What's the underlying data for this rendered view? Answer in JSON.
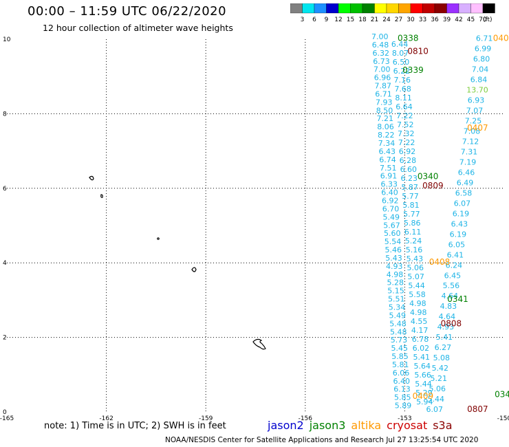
{
  "title": "00:00 – 11:59 UTC 06/22/2020",
  "subtitle": "12 hour collection of altimeter wave heights",
  "colorbar": {
    "labels": [
      "3",
      "6",
      "9",
      "12",
      "15",
      "18",
      "21",
      "24",
      "27",
      "30",
      "33",
      "36",
      "39",
      "42",
      "45",
      "70"
    ],
    "unit": "(ft)",
    "colors": [
      "#808080",
      "#00e5ee",
      "#1e90ff",
      "#0000cd",
      "#00ff00",
      "#00c000",
      "#008000",
      "#ffff00",
      "#ffd700",
      "#ffa500",
      "#ff0000",
      "#c00000",
      "#8b0000",
      "#9b30ff",
      "#d8b0ff",
      "#ffc0ff",
      "#000000"
    ]
  },
  "axes": {
    "x_ticks": [
      "-165",
      "-162",
      "-159",
      "-156",
      "-153",
      "-150"
    ],
    "y_ticks": [
      "0",
      "2",
      "4",
      "6",
      "8",
      "10"
    ],
    "xlim": [
      -165,
      -150
    ],
    "ylim": [
      0,
      10
    ]
  },
  "satellites": [
    {
      "name": "jason2",
      "color": "#0000cd"
    },
    {
      "name": "jason3",
      "color": "#008000"
    },
    {
      "name": "altika",
      "color": "#ff9900"
    },
    {
      "name": "cryosat",
      "color": "#cc0000"
    },
    {
      "name": "s3a",
      "color": "#8b0000"
    }
  ],
  "pass_times": [
    {
      "text": "0338",
      "lon": -152.9,
      "lat": 9.95,
      "color": "#008000"
    },
    {
      "text": "0810",
      "lon": -152.6,
      "lat": 9.6,
      "color": "#800000"
    },
    {
      "text": "0339",
      "lon": -152.75,
      "lat": 9.1,
      "color": "#008000"
    },
    {
      "text": "0340",
      "lon": -152.3,
      "lat": 6.25,
      "color": "#008000"
    },
    {
      "text": "0809",
      "lon": -152.15,
      "lat": 6.0,
      "color": "#800000"
    },
    {
      "text": "0341",
      "lon": -151.4,
      "lat": 2.95,
      "color": "#008000"
    },
    {
      "text": "0808",
      "lon": -151.6,
      "lat": 2.3,
      "color": "#800000"
    },
    {
      "text": "0407",
      "lon": -150.8,
      "lat": 7.55,
      "color": "#ff9900"
    },
    {
      "text": "0408",
      "lon": -151.95,
      "lat": 3.95,
      "color": "#ff9900"
    },
    {
      "text": "0409",
      "lon": -152.45,
      "lat": 0.35,
      "color": "#ff9900"
    },
    {
      "text": "0807",
      "lon": -150.8,
      "lat": 0.0,
      "color": "#800000"
    },
    {
      "text": "040",
      "lon": -150.1,
      "lat": 9.95,
      "color": "#ff9900"
    },
    {
      "text": "034",
      "lon": -150.05,
      "lat": 0.4,
      "color": "#008000"
    }
  ],
  "wave_heights": {
    "track_a": {
      "start": [
        -153.75,
        10.0
      ],
      "end": [
        -153.05,
        0.1
      ],
      "values": [
        "7.00",
        "6.48",
        "6.32",
        "6.73",
        "7.00",
        "6.96",
        "7.87",
        "6.71",
        "7.93",
        "8.50",
        "7.21",
        "8.06",
        "8.22",
        "7.34",
        "6.43",
        "6.74",
        "7.51",
        "6.91",
        "6.33",
        "6.40",
        "6.92",
        "6.70",
        "5.49",
        "5.67",
        "5.60",
        "5.54",
        "5.46",
        "5.43",
        "4.93",
        "4.98",
        "5.28",
        "5.15",
        "5.51",
        "5.34",
        "5.49",
        "5.48",
        "5.48",
        "5.73",
        "5.45",
        "5.85",
        "5.81",
        "6.06",
        "6.40",
        "6.13",
        "5.85",
        "5.89"
      ]
    },
    "track_b": {
      "start": [
        -153.15,
        9.8
      ],
      "end": [
        -152.4,
        0.2
      ],
      "values": [
        "6.44",
        "8.07",
        "6.50",
        "6.22",
        "7.16",
        "7.68",
        "8.11",
        "6.64",
        "7.22",
        "7.52",
        "7.32",
        "7.22",
        "6.92",
        "6.28",
        "6.60",
        "6.23",
        "5.87",
        "5.77",
        "5.81",
        "5.77",
        "5.86",
        "6.11",
        "5.24",
        "5.16",
        "5.43",
        "5.06",
        "5.07",
        "5.44",
        "5.58",
        "4.98",
        "4.98",
        "4.55",
        "4.17",
        "6.78",
        "6.02",
        "5.41",
        "5.64",
        "5.66",
        "5.44",
        "5.29",
        "5.94"
      ]
    },
    "track_c": {
      "start": [
        -150.6,
        9.95
      ],
      "end": [
        -152.1,
        0.0
      ],
      "values": [
        "6.71",
        "6.99",
        "6.80",
        "7.04",
        "6.84",
        "13.70",
        "6.93",
        "7.07",
        "7.25",
        "7.08",
        "7.12",
        "7.31",
        "7.19",
        "6.46",
        "6.49",
        "6.58",
        "6.07",
        "6.19",
        "6.43",
        "6.19",
        "6.05",
        "6.41",
        "6.24",
        "6.45",
        "5.56",
        "4.64",
        "4.83",
        "4.64",
        "4.93",
        "5.41",
        "6.27",
        "5.08",
        "5.42",
        "5.21",
        "5.06",
        "5.44",
        "6.07"
      ]
    }
  },
  "note": "note:  1) Time is in UTC;  2) SWH is in feet",
  "credit": "NOAA/NESDIS Center for Satellite Applications and Research     Jul 27 13:25:54 UTC 2020"
}
